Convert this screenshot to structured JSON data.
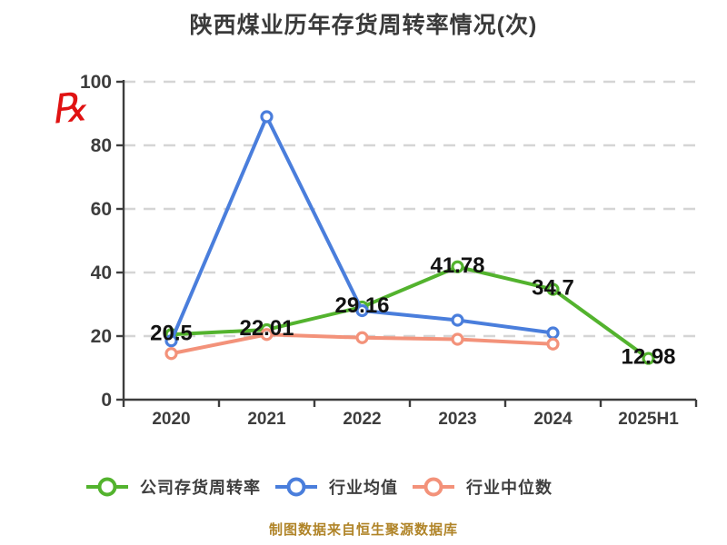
{
  "title": "陕西煤业历年存货周转率情况(次)",
  "decorations": {
    "red_mark_glyph": "℞",
    "red_mark_color": "#e01212"
  },
  "chart_data": {
    "type": "line",
    "title": "陕西煤业历年存货周转率情况(次)",
    "categories": [
      "2020",
      "2021",
      "2022",
      "2023",
      "2024",
      "2025H1"
    ],
    "xlabel": "",
    "ylabel": "",
    "ylim": [
      0,
      100
    ],
    "y_ticks": [
      0,
      20,
      40,
      60,
      80,
      100
    ],
    "grid": "dashed-horizontal",
    "legend_position": "bottom",
    "series": [
      {
        "name": "公司存货周转率",
        "color": "#53b32e",
        "values": [
          20.5,
          22.01,
          29.16,
          41.78,
          34.7,
          12.98
        ],
        "labels": [
          "20.5",
          "22.01",
          "29.16",
          "41.78",
          "34.7",
          "12.98"
        ]
      },
      {
        "name": "行业均值",
        "color": "#4a7edc",
        "values": [
          18.5,
          89,
          28,
          25,
          21,
          null
        ],
        "labels": null
      },
      {
        "name": "行业中位数",
        "color": "#f3927a",
        "values": [
          14.5,
          20.5,
          19.5,
          19,
          17.5,
          null
        ],
        "labels": null
      }
    ]
  },
  "legend": {
    "items": [
      {
        "label": "公司存货周转率",
        "color": "#53b32e"
      },
      {
        "label": "行业均值",
        "color": "#4a7edc"
      },
      {
        "label": "行业中位数",
        "color": "#f3927a"
      }
    ]
  },
  "footer": {
    "credit": "制图数据来自恒生聚源数据库",
    "color": "#b08428"
  },
  "style": {
    "axis_color": "#3d3d3d",
    "gridline_color": "#d5d5d5",
    "data_label_color": "#121212"
  }
}
